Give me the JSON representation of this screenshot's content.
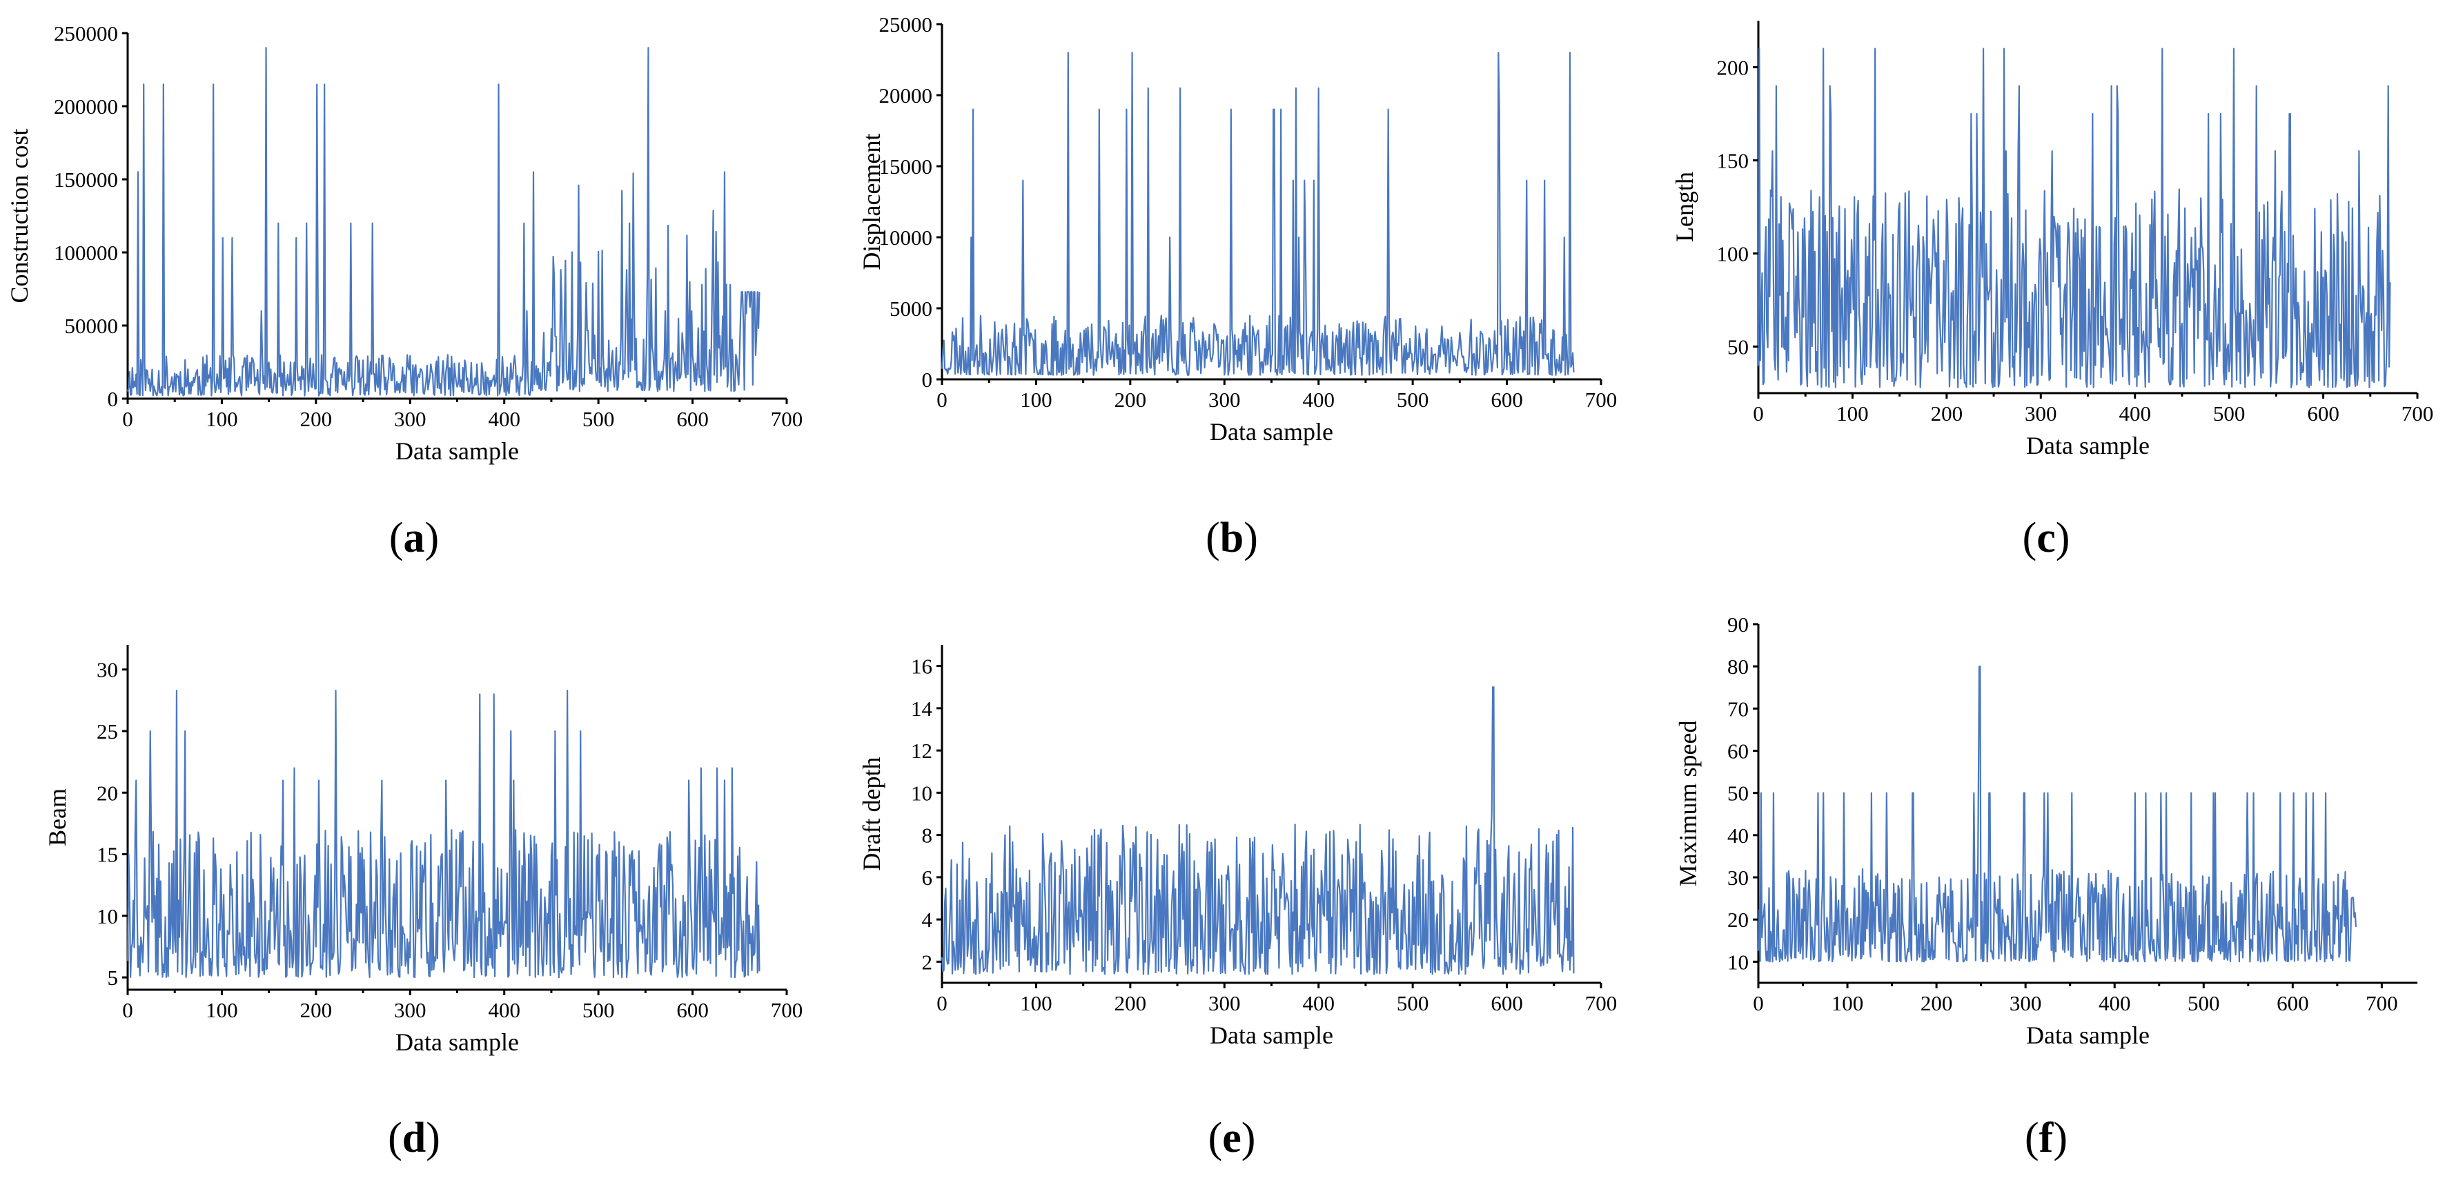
{
  "chart_data": [
    {
      "id": "a",
      "type": "line",
      "panel_label": "a",
      "title": "",
      "xlabel": "Data sample",
      "ylabel": "Construction cost",
      "xlim": [
        0,
        700
      ],
      "ylim": [
        0,
        250000
      ],
      "x_ticks": [
        "0",
        "100",
        "200",
        "300",
        "400",
        "500",
        "600",
        "700"
      ],
      "y_ticks": [
        "0",
        "50000",
        "100000",
        "150000",
        "200000",
        "250000"
      ],
      "series": [
        {
          "name": "Construction cost",
          "color": "#4a78c0",
          "n": 672,
          "base": [
            2000,
            30000
          ],
          "spike_prob": 0.04,
          "spike_values": [
            240000,
            215000,
            155000,
            120000,
            110000,
            78000,
            60000
          ],
          "late_band": {
            "start": 440,
            "range": [
              5000,
              155000
            ]
          },
          "tail": {
            "start": 650,
            "value": 73000
          },
          "seed": 11
        }
      ],
      "grid": false
    },
    {
      "id": "b",
      "type": "line",
      "panel_label": "b",
      "title": "",
      "xlabel": "Data sample",
      "ylabel": "Displacement",
      "xlim": [
        0,
        700
      ],
      "ylim": [
        0,
        25000
      ],
      "x_ticks": [
        "0",
        "100",
        "200",
        "300",
        "400",
        "500",
        "600",
        "700"
      ],
      "y_ticks": [
        "0",
        "5000",
        "10000",
        "15000",
        "20000",
        "25000"
      ],
      "series": [
        {
          "name": "Displacement",
          "color": "#4a78c0",
          "n": 672,
          "base": [
            300,
            4500
          ],
          "spike_prob": 0.03,
          "spike_values": [
            23000,
            20500,
            19000,
            14000,
            10000
          ],
          "seed": 23
        }
      ],
      "grid": false
    },
    {
      "id": "c",
      "type": "line",
      "panel_label": "c",
      "title": "",
      "xlabel": "Data sample",
      "ylabel": "Length",
      "xlim": [
        0,
        700
      ],
      "ylim": [
        25,
        225
      ],
      "x_ticks": [
        "0",
        "100",
        "200",
        "300",
        "400",
        "500",
        "600",
        "700"
      ],
      "y_ticks": [
        "50",
        "100",
        "150",
        "200"
      ],
      "series": [
        {
          "name": "Length",
          "color": "#4a78c0",
          "n": 672,
          "base": [
            28,
            135
          ],
          "spike_prob": 0.05,
          "spike_values": [
            210,
            190,
            175,
            155
          ],
          "seed": 37
        }
      ],
      "grid": false
    },
    {
      "id": "d",
      "type": "line",
      "panel_label": "d",
      "title": "",
      "xlabel": "Data sample",
      "ylabel": "Beam",
      "xlim": [
        0,
        700
      ],
      "ylim": [
        4,
        32
      ],
      "x_ticks": [
        "0",
        "100",
        "200",
        "300",
        "400",
        "500",
        "600",
        "700"
      ],
      "y_ticks": [
        "5",
        "10",
        "15",
        "20",
        "25",
        "30"
      ],
      "series": [
        {
          "name": "Beam",
          "color": "#4a78c0",
          "n": 672,
          "base": [
            5,
            17
          ],
          "spike_prob": 0.04,
          "spike_values": [
            28.3,
            28,
            25,
            22,
            21
          ],
          "seed": 41
        }
      ],
      "grid": false
    },
    {
      "id": "e",
      "type": "line",
      "panel_label": "e",
      "title": "",
      "xlabel": "Data sample",
      "ylabel": "Draft depth",
      "xlim": [
        0,
        700
      ],
      "ylim": [
        1,
        17
      ],
      "x_ticks": [
        "0",
        "100",
        "200",
        "300",
        "400",
        "500",
        "600",
        "700"
      ],
      "y_ticks": [
        "2",
        "4",
        "6",
        "8",
        "10",
        "12",
        "14",
        "16"
      ],
      "series": [
        {
          "name": "Draft depth",
          "color": "#4a78c0",
          "n": 672,
          "base": [
            1.4,
            8.5
          ],
          "spike_prob": 0.0,
          "spike_values": [
            15
          ],
          "special": {
            "index": 585,
            "value": 15
          },
          "seed": 53
        }
      ],
      "grid": false
    },
    {
      "id": "f",
      "type": "line",
      "panel_label": "f",
      "title": "",
      "xlabel": "Data sample",
      "ylabel": "Maximum speed",
      "xlim": [
        0,
        740
      ],
      "ylim": [
        5,
        90
      ],
      "x_ticks": [
        "0",
        "100",
        "200",
        "300",
        "400",
        "500",
        "600",
        "700"
      ],
      "y_ticks": [
        "10",
        "20",
        "30",
        "40",
        "50",
        "60",
        "70",
        "80",
        "90"
      ],
      "series": [
        {
          "name": "Maximum speed",
          "color": "#4a78c0",
          "n": 672,
          "base": [
            10,
            32
          ],
          "spike_prob": 0.045,
          "spike_values": [
            50
          ],
          "special": {
            "index": 248,
            "value": 80
          },
          "seed": 67
        }
      ],
      "grid": false
    }
  ]
}
